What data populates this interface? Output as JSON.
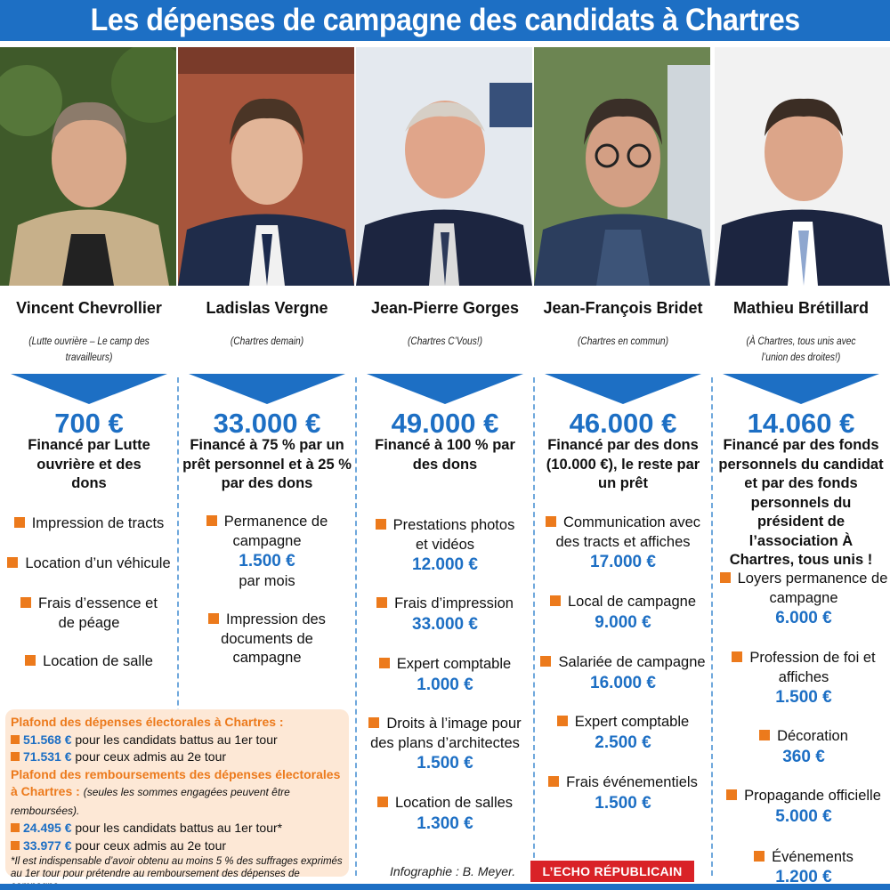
{
  "title": "Les dépenses de campagne des candidats à Chartres",
  "colors": {
    "accent_blue": "#1d6fc4",
    "accent_orange": "#ec7a1c",
    "box_bg": "#fde8d6",
    "logo_red": "#d92227"
  },
  "candidates": [
    {
      "name": "Vincent Chevrollier",
      "party": "(Lutte ouvrière – Le camp des travailleurs)",
      "total": "700 €",
      "funding": "Financé par Lutte ouvrière et des dons",
      "items": [
        {
          "label": "Impression de tracts"
        },
        {
          "label": "Location d’un véhicule"
        },
        {
          "label": "Frais d’essence et de péage"
        },
        {
          "label": "Location de salle"
        }
      ]
    },
    {
      "name": "Ladislas Vergne",
      "party": "(Chartres demain)",
      "total": "33.000 €",
      "funding": "Financé à 75 % par un prêt personnel et à 25 % par des dons",
      "items": [
        {
          "label": "Permanence de campagne",
          "value": "1.500 €",
          "after": "par mois"
        },
        {
          "label": "Impression des documents de campagne"
        }
      ]
    },
    {
      "name": "Jean-Pierre Gorges",
      "party": "(Chartres C’Vous!)",
      "total": "49.000 €",
      "funding": "Financé à 100 % par des dons",
      "items": [
        {
          "label": "Prestations photos et vidéos",
          "value": "12.000 €"
        },
        {
          "label": "Frais d’impression",
          "value": "33.000 €"
        },
        {
          "label": "Expert comptable",
          "value": "1.000 €"
        },
        {
          "label": "Droits à l’image pour des plans d’architectes",
          "value": "1.500 €"
        },
        {
          "label": "Location de salles",
          "value": "1.300 €"
        }
      ]
    },
    {
      "name": "Jean-François Bridet",
      "party": "(Chartres en commun)",
      "total": "46.000 €",
      "funding": "Financé par des dons (10.000 €), le reste par un prêt",
      "items": [
        {
          "label": "Communication avec des tracts et affiches",
          "value": "17.000 €"
        },
        {
          "label": "Local de campagne",
          "value": "9.000 €"
        },
        {
          "label": "Salariée de campagne",
          "value": "16.000 €"
        },
        {
          "label": "Expert comptable",
          "value": "2.500 €"
        },
        {
          "label": "Frais événementiels",
          "value": "1.500 €"
        }
      ]
    },
    {
      "name": "Mathieu Brétillard",
      "party": "(À Chartres, tous unis avec l’union des droites!)",
      "total": "14.060 €",
      "funding": "Financé par des fonds personnels du candidat et par des fonds personnels du président de l’association À Chartres, tous unis !",
      "items": [
        {
          "label": "Loyers permanence de campagne",
          "value": "6.000 €"
        },
        {
          "label": "Profession de foi et affiches",
          "value": "1.500 €"
        },
        {
          "label": "Décoration",
          "value": "360 €"
        },
        {
          "label": "Propagande officielle",
          "value": "5.000 €"
        },
        {
          "label": "Événements",
          "value": "1.200 €"
        }
      ]
    }
  ],
  "infobox": {
    "title1": "Plafond des dépenses électorales à Chartres :",
    "line1_value": "51.568 €",
    "line1_text": "pour les candidats battus au 1er tour",
    "line2_value": "71.531 €",
    "line2_text": "pour ceux admis au 2e tour",
    "title2": "Plafond des remboursements des dépenses électorales à Chartres :",
    "title2_note": "(seules les sommes engagées peuvent être remboursées).",
    "line3_value": "24.495 €",
    "line3_text": "pour les candidats battus au 1er tour*",
    "line4_value": "33.977 €",
    "line4_text": "pour ceux admis au 2e tour",
    "footnote": "*Il est indispensable d’avoir obtenu au moins 5 % des suffrages exprimés au 1er tour pour prétendre au remboursement des dépenses de campagne."
  },
  "credit": "Infographie : B. Meyer.",
  "logo": "L’ECHO RÉPUBLICAIN"
}
